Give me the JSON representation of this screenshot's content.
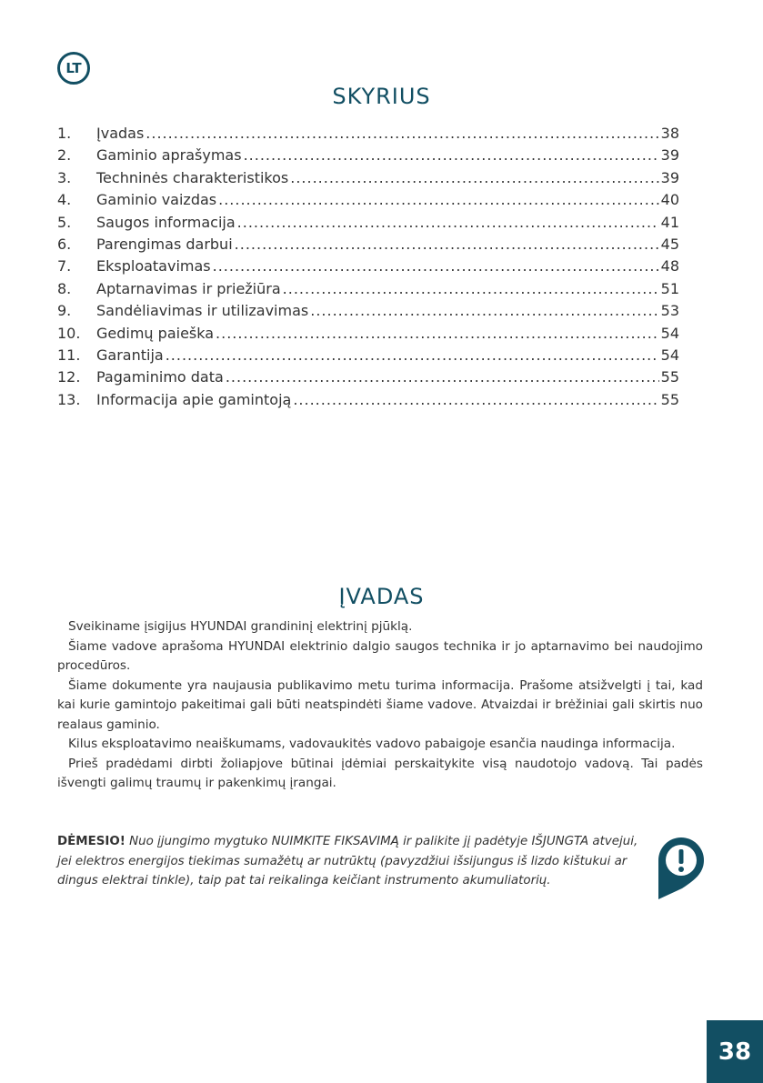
{
  "language_badge": "LT",
  "toc": {
    "title": "SKYRIUS",
    "items": [
      {
        "num": "1.",
        "label": "Įvadas",
        "page": "38"
      },
      {
        "num": "2.",
        "label": "Gaminio aprašymas",
        "page": "39"
      },
      {
        "num": "3.",
        "label": "Techninės charakteristikos",
        "page": "39"
      },
      {
        "num": "4.",
        "label": "Gaminio vaizdas",
        "page": "40"
      },
      {
        "num": "5.",
        "label": "Saugos informacija",
        "page": "41"
      },
      {
        "num": "6.",
        "label": "Parengimas darbui",
        "page": "45"
      },
      {
        "num": "7.",
        "label": "Eksploatavimas",
        "page": "48"
      },
      {
        "num": "8.",
        "label": "Aptarnavimas ir priežiūra",
        "page": "51"
      },
      {
        "num": "9.",
        "label": "Sandėliavimas ir utilizavimas",
        "page": "53"
      },
      {
        "num": "10.",
        "label": "Gedimų paieška",
        "page": "54"
      },
      {
        "num": "11.",
        "label": "Garantija",
        "page": "54"
      },
      {
        "num": "12.",
        "label": "Pagaminimo data",
        "page": "55"
      },
      {
        "num": "13.",
        "label": "Informacija apie gamintoją",
        "page": "55"
      }
    ]
  },
  "intro": {
    "title": "ĮVADAS",
    "paragraphs": [
      "Sveikiname įsigijus HYUNDAI grandininį elektrinį pjūklą.",
      "Šiame vadove aprašoma HYUNDAI elektrinio dalgio saugos technika ir jo aptarnavimo bei naudojimo procedūros.",
      "Šiame dokumente yra naujausia publikavimo metu turima informacija. Prašome atsižvelgti į tai, kad kai kurie gamintojo pakeitimai gali būti neatspindėti šiame vadove. Atvaizdai ir brėžiniai gali skirtis nuo realaus gaminio.",
      "Kilus eksploatavimo neaiškumams, vadovaukitės vadovo pabaigoje esančia naudinga informacija.",
      "Prieš pradėdami dirbti žoliapjove būtinai įdėmiai perskaitykite visą naudotojo vadovą. Tai padės išvengti galimų traumų ir pakenkimų įrangai."
    ]
  },
  "warning": {
    "label": "DĖMESIO!",
    "text": "Nuo įjungimo mygtuko NUIMKITE FIKSAVIMĄ ir palikite jį padėtyje IŠJUNGTA atvejui, jei elektros energijos tiekimas sumažėtų ar nutrūktų (pavyzdžiui  išsijungus iš lizdo kištukui ar dingus elektrai tinkle), taip pat tai reikalinga keičiant instrumento akumuliatorių.",
    "icon": "exclamation-pin-icon"
  },
  "page_number": "38",
  "accent_color": "#124f63"
}
